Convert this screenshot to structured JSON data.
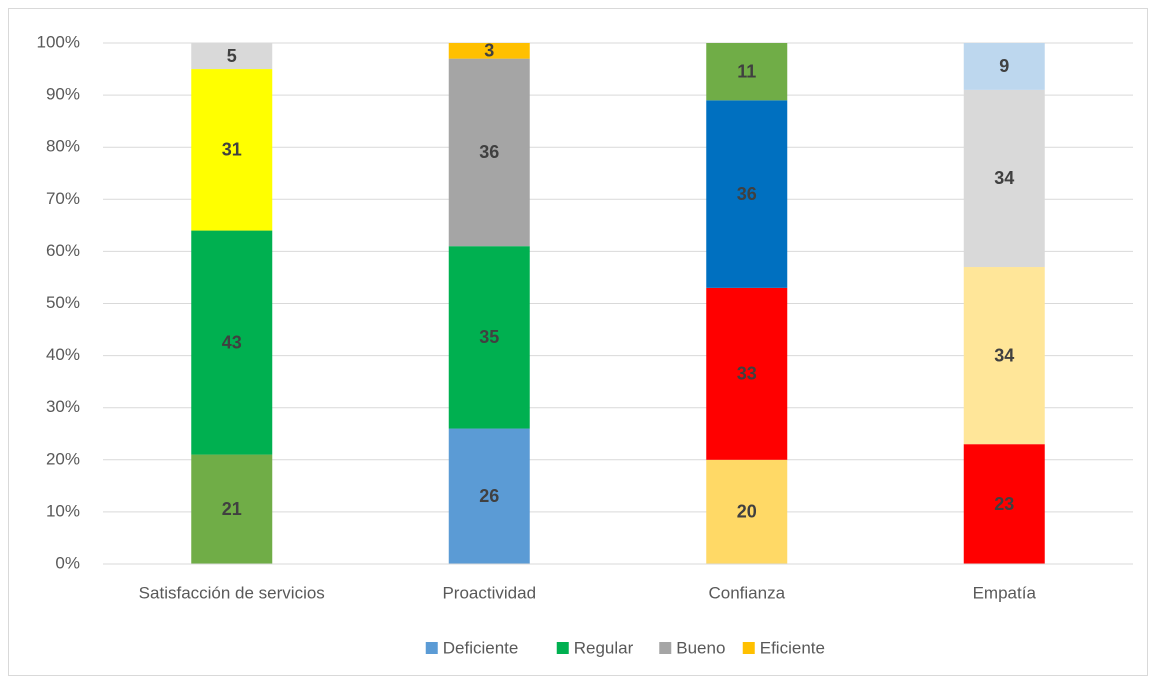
{
  "chart_data": {
    "type": "stacked_bar_100",
    "categories": [
      "Satisfacción de servicios",
      "Proactividad",
      "Confianza",
      "Empatía"
    ],
    "series": [
      {
        "name": "Deficiente",
        "color": "#5b9bd5",
        "colors": [
          "#70ad47",
          "#5b9bd5",
          "#ffd966",
          "#ff0000"
        ],
        "values": [
          21,
          26,
          20,
          23
        ]
      },
      {
        "name": "Regular",
        "color": "#00b050",
        "colors": [
          "#00b050",
          "#00b050",
          "#ff0000",
          "#ffe699"
        ],
        "values": [
          43,
          35,
          33,
          34
        ]
      },
      {
        "name": "Bueno",
        "color": "#a5a5a5",
        "colors": [
          "#ffff00",
          "#a5a5a5",
          "#0070c0",
          "#d9d9d9"
        ],
        "values": [
          31,
          36,
          36,
          34
        ]
      },
      {
        "name": "Eficiente",
        "color": "#ffc000",
        "colors": [
          "#d9d9d9",
          "#ffc000",
          "#70ad47",
          "#bdd7ee"
        ],
        "values": [
          5,
          3,
          11,
          9
        ]
      }
    ],
    "ylim": [
      0,
      100
    ],
    "yticks": [
      {
        "value": 0,
        "label": "0%"
      },
      {
        "value": 10,
        "label": "10%"
      },
      {
        "value": 20,
        "label": "20%"
      },
      {
        "value": 30,
        "label": "30%"
      },
      {
        "value": 40,
        "label": "40%"
      },
      {
        "value": 50,
        "label": "50%"
      },
      {
        "value": 60,
        "label": "60%"
      },
      {
        "value": 70,
        "label": "70%"
      },
      {
        "value": 80,
        "label": "80%"
      },
      {
        "value": 90,
        "label": "90%"
      },
      {
        "value": 100,
        "label": "100%"
      }
    ],
    "grid": true,
    "legend": "bottom"
  }
}
